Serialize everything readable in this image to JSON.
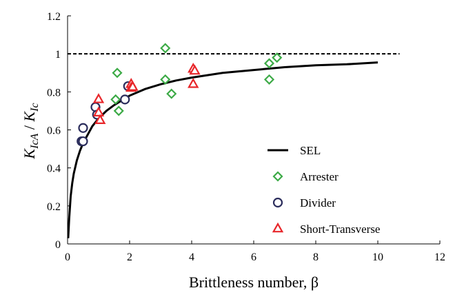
{
  "chart_data": {
    "type": "scatter",
    "xlabel": "Brittleness number, β",
    "ylabel_parts": {
      "k1": "K",
      "s1": "IcA",
      "slash": " / ",
      "k2": "K",
      "s2": "Ic"
    },
    "xlim": [
      0,
      12
    ],
    "ylim": [
      0,
      1.2
    ],
    "x_ticks": [
      "0",
      "2",
      "4",
      "6",
      "8",
      "10",
      "12"
    ],
    "y_ticks": [
      "0",
      "0.2",
      "0.4",
      "0.6",
      "0.8",
      "1",
      "1.2"
    ],
    "grid": false,
    "legend_position": "lower-right",
    "reference_line": {
      "y": 1,
      "x_range": [
        0,
        10.7
      ],
      "style": "dashed"
    },
    "series": [
      {
        "name": "SEL",
        "kind": "line",
        "color": "#000000",
        "points": [
          [
            0.02,
            0.03
          ],
          [
            0.05,
            0.13
          ],
          [
            0.1,
            0.25
          ],
          [
            0.15,
            0.32
          ],
          [
            0.2,
            0.37
          ],
          [
            0.3,
            0.44
          ],
          [
            0.4,
            0.49
          ],
          [
            0.5,
            0.53
          ],
          [
            0.6,
            0.56
          ],
          [
            0.8,
            0.62
          ],
          [
            1.0,
            0.66
          ],
          [
            1.25,
            0.7
          ],
          [
            1.5,
            0.73
          ],
          [
            2.0,
            0.78
          ],
          [
            2.5,
            0.815
          ],
          [
            3.0,
            0.84
          ],
          [
            3.5,
            0.86
          ],
          [
            4.0,
            0.875
          ],
          [
            5.0,
            0.9
          ],
          [
            6.0,
            0.915
          ],
          [
            7.0,
            0.93
          ],
          [
            8.0,
            0.94
          ],
          [
            9.0,
            0.945
          ],
          [
            10.0,
            0.955
          ]
        ]
      },
      {
        "name": "Arrester",
        "kind": "marker",
        "marker": "diamond",
        "color": "#3caa46",
        "points": [
          [
            1.6,
            0.9
          ],
          [
            1.55,
            0.76
          ],
          [
            1.65,
            0.7
          ],
          [
            3.15,
            1.03
          ],
          [
            3.15,
            0.865
          ],
          [
            3.35,
            0.79
          ],
          [
            6.5,
            0.95
          ],
          [
            6.75,
            0.98
          ],
          [
            6.5,
            0.865
          ]
        ]
      },
      {
        "name": "Divider",
        "kind": "marker",
        "marker": "circle",
        "color": "#2b2d5c",
        "points": [
          [
            0.5,
            0.61
          ],
          [
            0.45,
            0.54
          ],
          [
            0.5,
            0.54
          ],
          [
            0.9,
            0.72
          ],
          [
            0.95,
            0.68
          ],
          [
            1.85,
            0.76
          ],
          [
            1.95,
            0.83
          ]
        ]
      },
      {
        "name": "Short-Transverse",
        "kind": "marker",
        "marker": "triangle",
        "color": "#e8262a",
        "points": [
          [
            1.0,
            0.76
          ],
          [
            1.0,
            0.69
          ],
          [
            1.05,
            0.65
          ],
          [
            2.05,
            0.84
          ],
          [
            2.05,
            0.82
          ],
          [
            2.1,
            0.825
          ],
          [
            4.05,
            0.92
          ],
          [
            4.1,
            0.91
          ],
          [
            4.05,
            0.84
          ]
        ]
      }
    ]
  }
}
